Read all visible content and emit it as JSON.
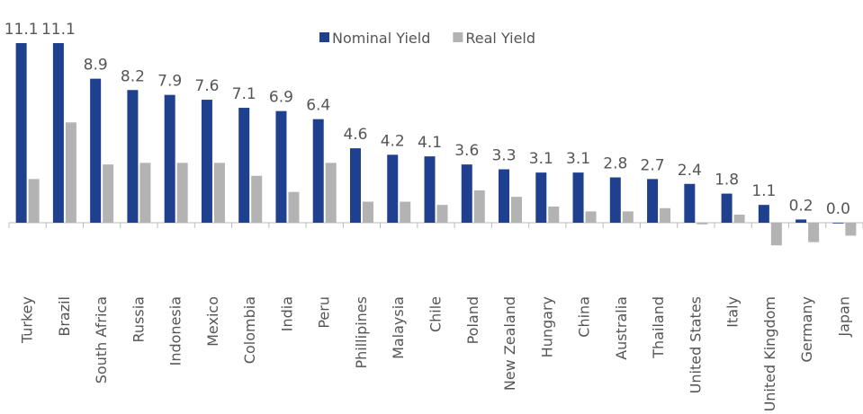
{
  "chart_data": {
    "type": "bar",
    "categories": [
      "Turkey",
      "Brazil",
      "South Africa",
      "Russia",
      "Indonesia",
      "Mexico",
      "Colombia",
      "India",
      "Peru",
      "Phillipines",
      "Malaysia",
      "Chile",
      "Poland",
      "New Zealand",
      "Hungary",
      "China",
      "Australia",
      "Thailand",
      "United States",
      "Italy",
      "United Kingdom",
      "Germany",
      "Japan"
    ],
    "series": [
      {
        "name": "Nominal Yield",
        "color": "#1f3f8f",
        "values": [
          11.1,
          11.1,
          8.9,
          8.2,
          7.9,
          7.6,
          7.1,
          6.9,
          6.4,
          4.6,
          4.2,
          4.1,
          3.6,
          3.3,
          3.1,
          3.1,
          2.8,
          2.7,
          2.4,
          1.8,
          1.1,
          0.2,
          0.0
        ],
        "value_labels": [
          "11.1",
          "11.1",
          "8.9",
          "8.2",
          "7.9",
          "7.6",
          "7.1",
          "6.9",
          "6.4",
          "4.6",
          "4.2",
          "4.1",
          "3.6",
          "3.3",
          "3.1",
          "3.1",
          "2.8",
          "2.7",
          "2.4",
          "1.8",
          "1.1",
          "0.2",
          "0.0"
        ]
      },
      {
        "name": "Real Yield",
        "color": "#b3b3b3",
        "values": [
          2.7,
          6.2,
          3.6,
          3.7,
          3.7,
          3.7,
          2.9,
          1.9,
          3.7,
          1.3,
          1.3,
          1.1,
          2.0,
          1.6,
          1.0,
          0.7,
          0.7,
          0.9,
          -0.1,
          0.5,
          -1.4,
          -1.2,
          -0.8
        ]
      }
    ],
    "legend": "top"
  }
}
